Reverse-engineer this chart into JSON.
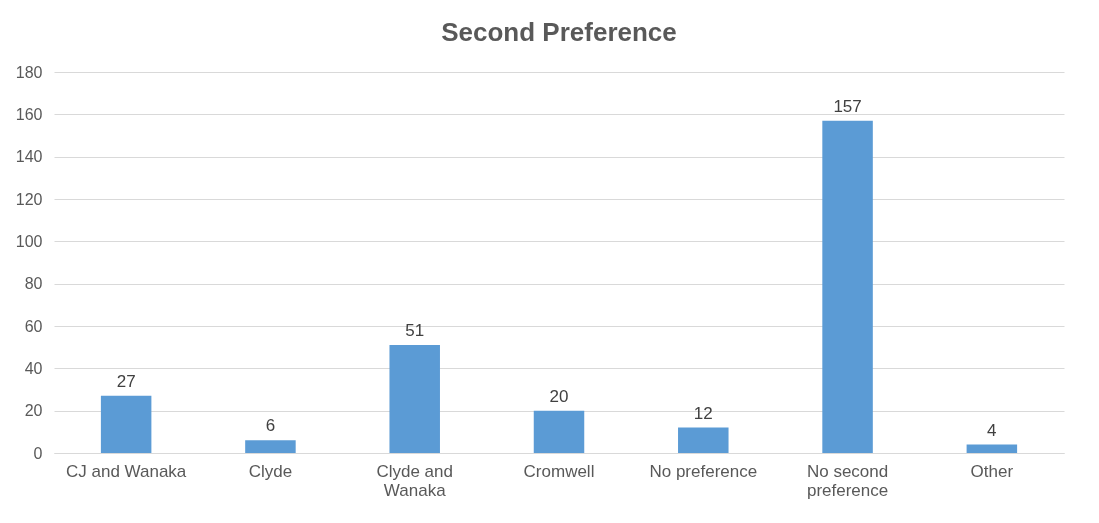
{
  "chart_data": {
    "type": "bar",
    "title": "Second Preference",
    "categories": [
      "CJ and Wanaka",
      "Clyde",
      "Clyde and Wanaka",
      "Cromwell",
      "No preference",
      "No second preference",
      "Other"
    ],
    "values": [
      27,
      6,
      51,
      20,
      12,
      157,
      4
    ],
    "color": "#5b9bd5",
    "ylim": [
      0,
      180
    ],
    "yticks": [
      0,
      20,
      40,
      60,
      80,
      100,
      120,
      140,
      160,
      180
    ],
    "grid": "y",
    "data_labels": true
  }
}
